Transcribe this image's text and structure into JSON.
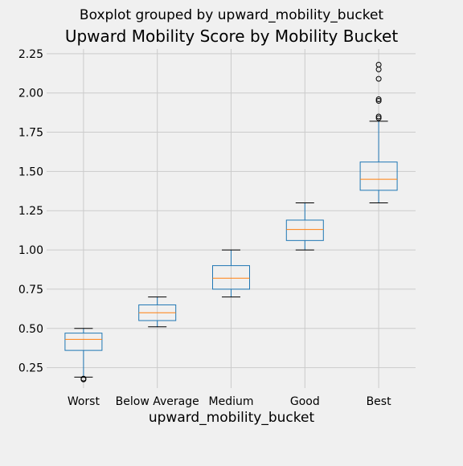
{
  "figure": {
    "suptitle": "Boxplot grouped by upward_mobility_bucket",
    "background": "#f0f0f0",
    "grid_color": "#cbcbcb",
    "box_color": "#1f77b4",
    "median_color": "#ff7f0e",
    "whisker_color": "#000000"
  },
  "chart_data": {
    "type": "boxplot",
    "title": "Upward Mobility Score by Mobility Bucket",
    "xlabel": "upward_mobility_bucket",
    "ylabel": "",
    "ylim": [
      0.12,
      2.28
    ],
    "yticks": [
      "0.25",
      "0.50",
      "0.75",
      "1.00",
      "1.25",
      "1.50",
      "1.75",
      "2.00",
      "2.25"
    ],
    "grid": true,
    "categories": [
      "Worst",
      "Below Average",
      "Medium",
      "Good",
      "Best"
    ],
    "boxes": [
      {
        "category": "Worst",
        "whisker_low": 0.19,
        "q1": 0.36,
        "median": 0.43,
        "q3": 0.47,
        "whisker_high": 0.5,
        "outliers": [
          0.175,
          0.18
        ]
      },
      {
        "category": "Below Average",
        "whisker_low": 0.51,
        "q1": 0.55,
        "median": 0.6,
        "q3": 0.65,
        "whisker_high": 0.7,
        "outliers": []
      },
      {
        "category": "Medium",
        "whisker_low": 0.7,
        "q1": 0.75,
        "median": 0.82,
        "q3": 0.9,
        "whisker_high": 1.0,
        "outliers": []
      },
      {
        "category": "Good",
        "whisker_low": 1.0,
        "q1": 1.06,
        "median": 1.13,
        "q3": 1.19,
        "whisker_high": 1.3,
        "outliers": []
      },
      {
        "category": "Best",
        "whisker_low": 1.3,
        "q1": 1.38,
        "median": 1.45,
        "q3": 1.56,
        "whisker_high": 1.82,
        "outliers": [
          1.84,
          1.85,
          1.95,
          1.96,
          2.09,
          2.15,
          2.18
        ]
      }
    ]
  }
}
